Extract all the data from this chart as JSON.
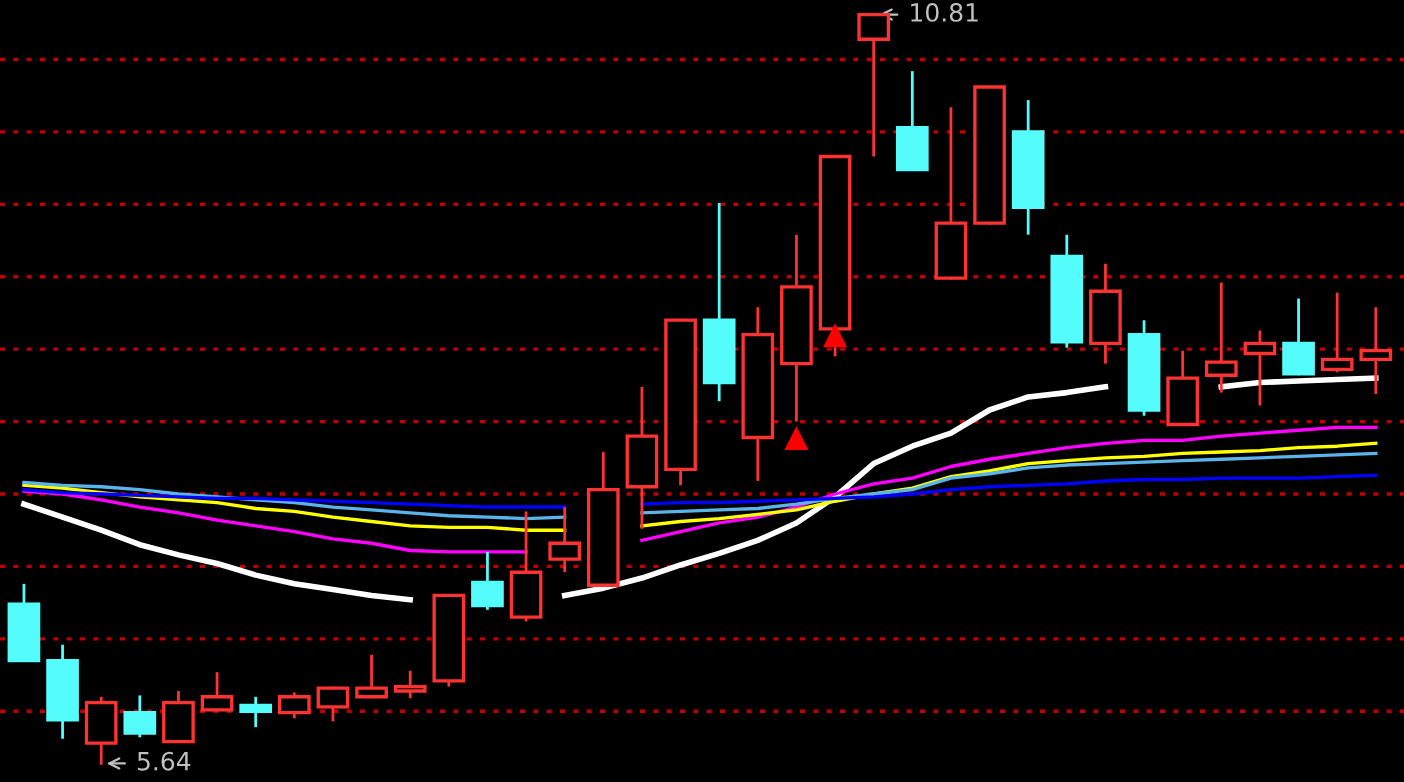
{
  "chart_data": {
    "type": "candlestick",
    "categories": [
      null,
      null,
      null,
      null,
      null,
      null,
      null,
      null,
      null,
      null,
      null,
      null,
      null,
      null,
      null,
      null,
      null,
      null,
      null,
      null,
      null,
      null,
      null,
      null,
      null,
      null,
      null,
      null,
      null,
      null,
      null,
      null,
      null,
      null,
      null,
      null
    ],
    "ohlc": [
      [
        6.74,
        6.87,
        6.35,
        6.35
      ],
      [
        6.35,
        6.45,
        5.82,
        5.94
      ],
      [
        5.78,
        6.09,
        5.64,
        6.06
      ],
      [
        5.99,
        6.1,
        5.83,
        5.85
      ],
      [
        5.79,
        6.13,
        5.79,
        6.06
      ],
      [
        6.01,
        6.26,
        6.01,
        6.1
      ],
      [
        6.04,
        6.09,
        5.9,
        6.0
      ],
      [
        5.99,
        6.12,
        5.96,
        6.1
      ],
      [
        6.03,
        6.16,
        5.94,
        6.16
      ],
      [
        6.1,
        6.38,
        6.1,
        6.16
      ],
      [
        6.14,
        6.27,
        6.1,
        6.17
      ],
      [
        6.21,
        6.8,
        6.18,
        6.8
      ],
      [
        6.89,
        7.09,
        6.71,
        6.73
      ],
      [
        6.65,
        7.37,
        6.63,
        6.96
      ],
      [
        7.05,
        7.4,
        6.97,
        7.16
      ],
      [
        6.87,
        7.78,
        6.87,
        7.53
      ],
      [
        7.55,
        8.23,
        7.27,
        7.9
      ],
      [
        7.67,
        8.7,
        7.57,
        8.7
      ],
      [
        8.7,
        9.5,
        8.15,
        8.27
      ],
      [
        7.89,
        8.78,
        7.6,
        8.6
      ],
      [
        8.4,
        9.28,
        8.01,
        8.93
      ],
      [
        8.64,
        9.83,
        8.46,
        9.83
      ],
      [
        10.64,
        10.81,
        9.84,
        10.81
      ],
      [
        10.03,
        10.41,
        9.74,
        9.74
      ],
      [
        8.99,
        10.16,
        8.99,
        9.37
      ],
      [
        9.37,
        10.31,
        9.37,
        10.31
      ],
      [
        10.0,
        10.21,
        9.3,
        9.48
      ],
      [
        9.14,
        9.28,
        8.52,
        8.55
      ],
      [
        8.54,
        9.08,
        8.41,
        8.9
      ],
      [
        8.6,
        8.69,
        8.05,
        8.08
      ],
      [
        7.98,
        8.48,
        7.98,
        8.3
      ],
      [
        8.32,
        8.95,
        8.21,
        8.41
      ],
      [
        8.47,
        8.62,
        8.12,
        8.54
      ],
      [
        8.54,
        8.84,
        8.33,
        8.33
      ],
      [
        8.36,
        8.88,
        8.35,
        8.43
      ],
      [
        8.43,
        8.78,
        8.2,
        8.49
      ]
    ],
    "colors": [
      "#54fcfc",
      "#54fcfc",
      "#ff3232",
      "#54fcfc",
      "#ff3232",
      "#ff3232",
      "#54fcfc",
      "#ff3232",
      "#ff3232",
      "#ff3232",
      "#ff3232",
      "#ff3232",
      "#54fcfc",
      "#ff3232",
      "#ff3232",
      "#ff3232",
      "#ff3232",
      "#ff3232",
      "#54fcfc",
      "#ff3232",
      "#ff3232",
      "#ff3232",
      "#ff3232",
      "#54fcfc",
      "#ff3232",
      "#ff3232",
      "#54fcfc",
      "#54fcfc",
      "#ff3232",
      "#54fcfc",
      "#ff3232",
      "#ff3232",
      "#ff3232",
      "#54fcfc",
      "#ff3232",
      "#ff3232"
    ],
    "series": [
      {
        "type": "line",
        "color": "#ffffff",
        "values": [
          7.43,
          7.34,
          7.25,
          7.15,
          7.08,
          7.02,
          6.94,
          6.88,
          6.84,
          6.8,
          6.77,
          null,
          null,
          null,
          6.8,
          6.85,
          6.92,
          7.01,
          7.09,
          7.18,
          7.3,
          7.48,
          7.71,
          7.83,
          7.92,
          8.08,
          8.17,
          8.2,
          8.24,
          null,
          null,
          8.24,
          8.27,
          8.28,
          8.29,
          8.3
        ]
      },
      {
        "type": "line",
        "color": "#ff00ff",
        "values": [
          7.52,
          7.5,
          7.46,
          7.41,
          7.37,
          7.32,
          7.28,
          7.24,
          7.19,
          7.16,
          7.11,
          7.1,
          7.1,
          7.1,
          null,
          null,
          7.18,
          7.24,
          7.3,
          7.34,
          7.41,
          7.5,
          7.57,
          7.61,
          7.69,
          7.74,
          7.78,
          7.82,
          7.85,
          7.87,
          7.87,
          7.9,
          7.92,
          7.94,
          7.96,
          7.96
        ]
      },
      {
        "type": "line",
        "color": "#ffff00",
        "values": [
          7.56,
          7.54,
          7.51,
          7.48,
          7.46,
          7.44,
          7.4,
          7.38,
          7.34,
          7.31,
          7.28,
          7.27,
          7.27,
          7.25,
          7.25,
          null,
          7.28,
          7.31,
          7.33,
          7.36,
          7.39,
          7.45,
          7.5,
          7.54,
          7.62,
          7.66,
          7.71,
          7.73,
          7.75,
          7.76,
          7.78,
          7.79,
          7.8,
          7.82,
          7.83,
          7.85
        ]
      },
      {
        "type": "line",
        "color": "#5ab4ea",
        "values": [
          7.58,
          7.56,
          7.55,
          7.53,
          7.5,
          7.48,
          7.46,
          7.44,
          7.41,
          7.39,
          7.37,
          7.35,
          7.34,
          7.33,
          7.34,
          null,
          7.37,
          7.38,
          7.39,
          7.4,
          7.43,
          7.47,
          7.5,
          7.53,
          7.61,
          7.64,
          7.68,
          7.7,
          7.71,
          7.72,
          7.73,
          7.74,
          7.75,
          7.76,
          7.77,
          7.78
        ]
      },
      {
        "type": "line",
        "color": "#0000ff",
        "values": [
          7.53,
          7.51,
          7.5,
          7.49,
          7.48,
          7.47,
          7.47,
          7.46,
          7.45,
          7.44,
          7.43,
          7.42,
          7.41,
          7.41,
          7.41,
          null,
          7.43,
          7.44,
          7.44,
          7.45,
          7.46,
          7.47,
          7.48,
          7.5,
          7.53,
          7.55,
          7.56,
          7.57,
          7.59,
          7.6,
          7.6,
          7.61,
          7.61,
          7.61,
          7.62,
          7.63
        ]
      },
      {
        "type": "scatter",
        "color": "#ff0000",
        "marker": "triangle",
        "values": [
          null,
          null,
          null,
          null,
          null,
          null,
          null,
          null,
          null,
          null,
          null,
          null,
          null,
          null,
          null,
          null,
          null,
          null,
          null,
          null,
          7.88,
          8.59,
          null,
          null,
          null,
          null,
          null,
          null,
          null,
          null,
          null,
          null,
          null,
          null,
          null,
          null
        ]
      }
    ],
    "yticks": [
      {
        "value": 6,
        "label": null
      },
      {
        "value": 6.5,
        "label": null
      },
      {
        "value": 7,
        "label": null
      },
      {
        "value": 7.5,
        "label": null
      },
      {
        "value": 8,
        "label": null
      },
      {
        "value": 8.5,
        "label": null
      },
      {
        "value": 9,
        "label": null
      },
      {
        "value": 9.5,
        "label": null
      },
      {
        "value": 10,
        "label": null
      },
      {
        "value": 10.5,
        "label": null
      }
    ],
    "grid": "y",
    "annotations": [
      "10.81",
      "5.64"
    ]
  }
}
